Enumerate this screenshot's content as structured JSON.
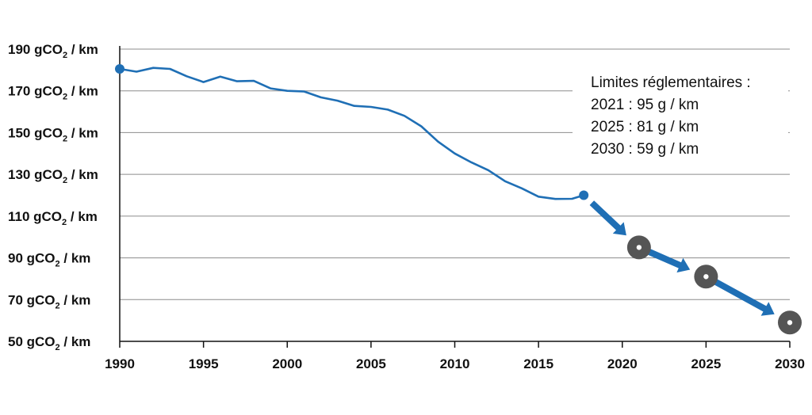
{
  "chart_data": {
    "type": "line",
    "title": "",
    "xlabel": "",
    "ylabel": "",
    "xlim": [
      1990,
      2030
    ],
    "ylim": [
      50,
      190
    ],
    "y_ticks": [
      {
        "value": 190,
        "prefix": "190 gCO",
        "sub": "2",
        "suffix": " / km"
      },
      {
        "value": 170,
        "prefix": "170 gCO",
        "sub": "2",
        "suffix": " / km"
      },
      {
        "value": 150,
        "prefix": "150 gCO",
        "sub": "2",
        "suffix": " / km"
      },
      {
        "value": 130,
        "prefix": "130 gCO",
        "sub": "2",
        "suffix": " / km"
      },
      {
        "value": 110,
        "prefix": "110 gCO",
        "sub": "2",
        "suffix": " / km"
      },
      {
        "value": 90,
        "prefix": "90 gCO",
        "sub": "2",
        "suffix": " / km"
      },
      {
        "value": 70,
        "prefix": "70 gCO",
        "sub": "2",
        "suffix": " / km"
      },
      {
        "value": 50,
        "prefix": "50 gCO",
        "sub": "2",
        "suffix": " / km"
      }
    ],
    "x_ticks": [
      {
        "value": 1990,
        "label": "1990"
      },
      {
        "value": 1995,
        "label": "1995"
      },
      {
        "value": 2000,
        "label": "2000"
      },
      {
        "value": 2005,
        "label": "2005"
      },
      {
        "value": 2010,
        "label": "2010"
      },
      {
        "value": 2015,
        "label": "2015"
      },
      {
        "value": 2020,
        "label": "2020"
      },
      {
        "value": 2025,
        "label": "2025"
      },
      {
        "value": 2030,
        "label": "2030"
      }
    ],
    "grid": true,
    "series": [
      {
        "color": "#1f6fb5",
        "points": [
          [
            1990,
            180.5
          ],
          [
            1991,
            179.2
          ],
          [
            1992,
            181.0
          ],
          [
            1993,
            180.5
          ],
          [
            1994,
            177.0
          ],
          [
            1995,
            174.2
          ],
          [
            1996,
            176.8
          ],
          [
            1997,
            174.6
          ],
          [
            1998,
            174.8
          ],
          [
            1999,
            171.2
          ],
          [
            2000,
            170.0
          ],
          [
            2001,
            169.7
          ],
          [
            2002,
            166.9
          ],
          [
            2003,
            165.3
          ],
          [
            2004,
            162.8
          ],
          [
            2005,
            162.3
          ],
          [
            2006,
            161.0
          ],
          [
            2007,
            158.0
          ],
          [
            2008,
            153.0
          ],
          [
            2009,
            145.7
          ],
          [
            2010,
            140.0
          ],
          [
            2011,
            135.7
          ],
          [
            2012,
            132.0
          ],
          [
            2013,
            126.7
          ],
          [
            2014,
            123.3
          ],
          [
            2015,
            119.3
          ],
          [
            2016,
            118.2
          ],
          [
            2017,
            118.3
          ],
          [
            2017.7,
            120.0
          ]
        ]
      }
    ],
    "targets": [
      {
        "year": 2021,
        "value": 95
      },
      {
        "year": 2025,
        "value": 81
      },
      {
        "year": 2030,
        "value": 59
      }
    ],
    "arrow_color": "#1f6fb5",
    "target_color": "#555555",
    "annotation": {
      "lines": [
        "Limites réglementaires :",
        "2021 : 95 g / km",
        "2025 : 81 g / km",
        "2030 : 59 g / km"
      ]
    }
  }
}
